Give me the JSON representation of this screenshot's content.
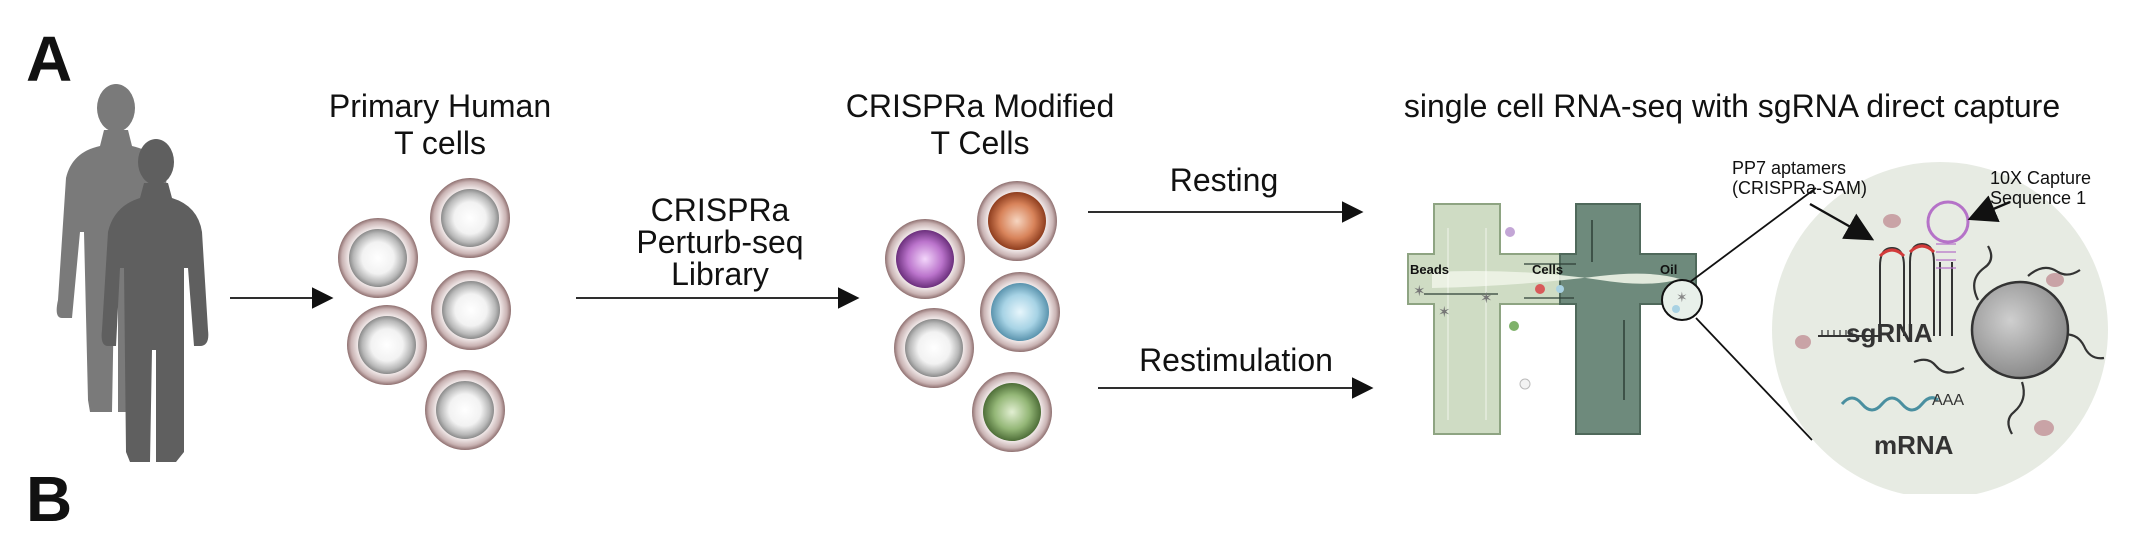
{
  "panel_labels": {
    "a": "A",
    "b": "B"
  },
  "steps": {
    "primary": {
      "line1": "Primary Human",
      "line2": "T cells"
    },
    "library": {
      "line1": "CRISPRa",
      "line2": "Perturb-seq",
      "line3": "Library"
    },
    "modified": {
      "line1": "CRISPRa Modified",
      "line2": "T Cells"
    },
    "scrnaseq_title": "single cell RNA-seq with sgRNA direct capture"
  },
  "conditions": {
    "resting": "Resting",
    "restimulation": "Restimulation"
  },
  "microfluidics": {
    "beads": "Beads",
    "cells": "Cells",
    "oil": "Oil"
  },
  "zoom": {
    "aptamers_line1": "PP7 aptamers",
    "aptamers_line2": "(CRISPRa-SAM)",
    "capture_line1": "10X Capture",
    "capture_line2": "Sequence 1",
    "sgrna": "sgRNA",
    "aaa": "AAA",
    "mrna": "mRNA"
  },
  "colors": {
    "silhouette": "#6f6f6f",
    "cell_ring": "#b7a4a4",
    "orange": "#d0764a",
    "purple": "#b26bc4",
    "blue": "#9fcde0",
    "green": "#8aad6e",
    "chip_light": "#cfdcc4",
    "chip_dark": "#6e8a7c",
    "zoom_bg": "#e7ebe3",
    "bead": "#a9a9a9"
  }
}
